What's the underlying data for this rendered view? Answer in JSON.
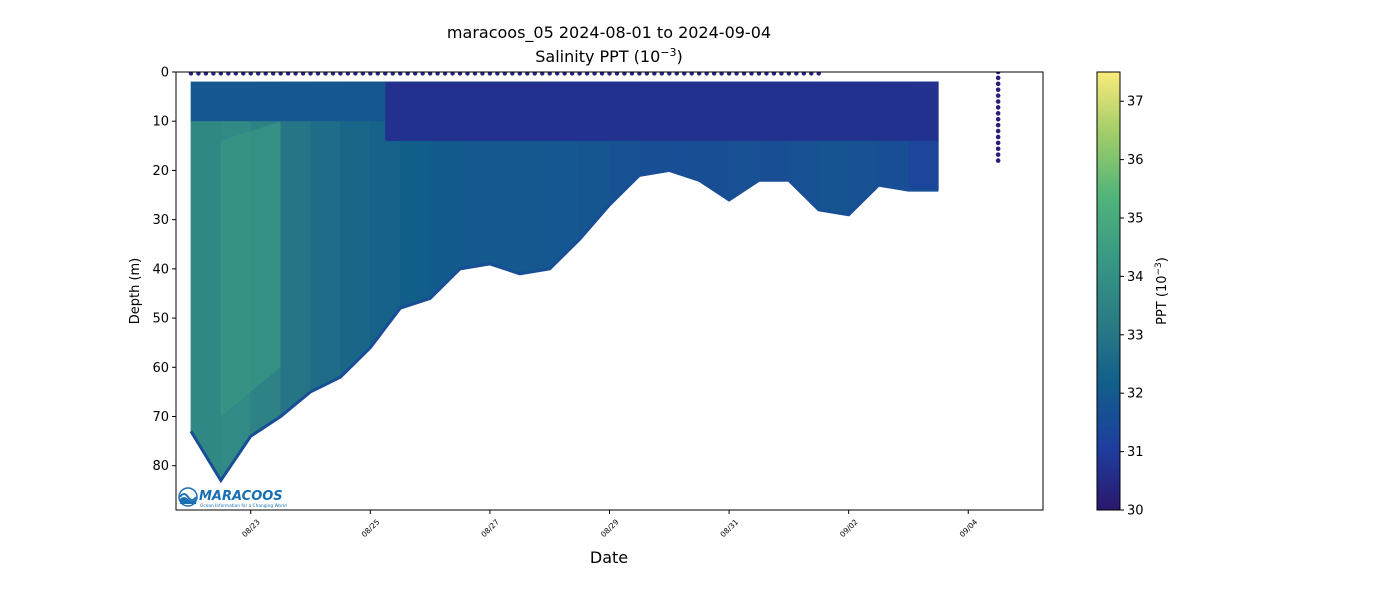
{
  "chart_data": {
    "type": "scatter",
    "title_line1": "maracoos_05 2024-08-01 to 2024-09-04",
    "title_line2_text": "Salinity PPT (10",
    "title_line2_sup": "−3",
    "title_line2_close": ")",
    "xlabel": "Date",
    "ylabel": "Depth (m)",
    "x_range": [
      "2024-08-21T18:00",
      "2024-09-05T06:00"
    ],
    "ylim": [
      89,
      0
    ],
    "y_inverted": true,
    "x_ticks": [
      "08/23",
      "08/25",
      "08/27",
      "08/29",
      "08/31",
      "09/02",
      "09/04"
    ],
    "x_tick_dates": [
      "2024-08-23",
      "2024-08-25",
      "2024-08-27",
      "2024-08-29",
      "2024-08-31",
      "2024-09-02",
      "2024-09-04"
    ],
    "y_ticks": [
      0,
      10,
      20,
      30,
      40,
      50,
      60,
      70,
      80
    ],
    "colorbar": {
      "label_text": "PPT (10",
      "label_sup": "−3",
      "label_close": ")",
      "range": [
        30,
        37.5
      ],
      "ticks": [
        30,
        31,
        32,
        33,
        34,
        35,
        36,
        37
      ],
      "colormap": "haline",
      "stops": [
        "#2a186c",
        "#1e3e9f",
        "#125e8b",
        "#2b7b85",
        "#379884",
        "#50b47a",
        "#9fcc69",
        "#f9eb7a"
      ]
    },
    "profile_envelope": [
      {
        "date": "2024-08-22T00:00",
        "max_depth": 73,
        "salinity_deep": 33.6
      },
      {
        "date": "2024-08-22T12:00",
        "max_depth": 83,
        "salinity_deep": 33.8
      },
      {
        "date": "2024-08-23T00:00",
        "max_depth": 74,
        "salinity_deep": 33.7
      },
      {
        "date": "2024-08-23T12:00",
        "max_depth": 70,
        "salinity_deep": 33.2
      },
      {
        "date": "2024-08-24T00:00",
        "max_depth": 65,
        "salinity_deep": 32.8
      },
      {
        "date": "2024-08-24T12:00",
        "max_depth": 62,
        "salinity_deep": 32.5
      },
      {
        "date": "2024-08-25T00:00",
        "max_depth": 56,
        "salinity_deep": 32.4
      },
      {
        "date": "2024-08-25T12:00",
        "max_depth": 48,
        "salinity_deep": 32.2
      },
      {
        "date": "2024-08-26T00:00",
        "max_depth": 46,
        "salinity_deep": 32.1
      },
      {
        "date": "2024-08-26T12:00",
        "max_depth": 40,
        "salinity_deep": 32.0
      },
      {
        "date": "2024-08-27T00:00",
        "max_depth": 39,
        "salinity_deep": 32.0
      },
      {
        "date": "2024-08-27T12:00",
        "max_depth": 41,
        "salinity_deep": 32.0
      },
      {
        "date": "2024-08-28T00:00",
        "max_depth": 40,
        "salinity_deep": 31.9
      },
      {
        "date": "2024-08-28T12:00",
        "max_depth": 34,
        "salinity_deep": 31.9
      },
      {
        "date": "2024-08-29T00:00",
        "max_depth": 27,
        "salinity_deep": 31.8
      },
      {
        "date": "2024-08-29T12:00",
        "max_depth": 21,
        "salinity_deep": 31.7
      },
      {
        "date": "2024-08-30T00:00",
        "max_depth": 20,
        "salinity_deep": 31.6
      },
      {
        "date": "2024-08-30T12:00",
        "max_depth": 22,
        "salinity_deep": 31.6
      },
      {
        "date": "2024-08-31T00:00",
        "max_depth": 26,
        "salinity_deep": 31.7
      },
      {
        "date": "2024-08-31T12:00",
        "max_depth": 22,
        "salinity_deep": 31.7
      },
      {
        "date": "2024-09-01T00:00",
        "max_depth": 22,
        "salinity_deep": 31.6
      },
      {
        "date": "2024-09-01T12:00",
        "max_depth": 28,
        "salinity_deep": 31.8
      },
      {
        "date": "2024-09-02T00:00",
        "max_depth": 29,
        "salinity_deep": 31.8
      },
      {
        "date": "2024-09-02T12:00",
        "max_depth": 23,
        "salinity_deep": 31.7
      },
      {
        "date": "2024-09-03T00:00",
        "max_depth": 24,
        "salinity_deep": 31.5
      },
      {
        "date": "2024-09-03T12:00",
        "max_depth": 24,
        "salinity_deep": 31.2
      }
    ],
    "surface_layer": [
      {
        "date_start": "2024-08-22T00:00",
        "date_end": "2024-08-25T06:00",
        "depth_to": 10,
        "salinity": 31.9
      },
      {
        "date_start": "2024-08-25T06:00",
        "date_end": "2024-09-03T12:00",
        "depth_to": 14,
        "salinity": 30.7
      }
    ],
    "high_salinity_core": {
      "date_start": "2024-08-22T12:00",
      "date_end": "2024-08-23T12:00",
      "depth_from": 10,
      "depth_to": 70,
      "salinity": 34.4
    },
    "isolated_profile": {
      "date": "2024-09-04T12:00",
      "depth_from": 0,
      "depth_to": 18,
      "salinity": 30.2
    }
  },
  "logo": {
    "text": "MARACOOS",
    "tagline": "Ocean Information for a Changing World"
  }
}
